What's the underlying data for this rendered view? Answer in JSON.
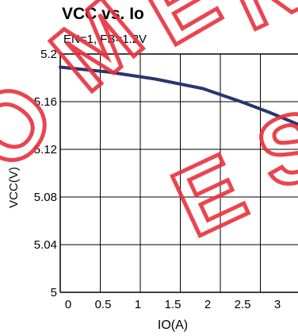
{
  "chart_data": {
    "type": "line",
    "title": "VCC vs. Io",
    "subtitle": "EN=1, FB=1.2V",
    "xlabel": "IO(A)",
    "ylabel": "VCC(V)",
    "xlim": [
      0,
      3
    ],
    "ylim": [
      5,
      5.2
    ],
    "x_ticks": [
      "0",
      "0.5",
      "1",
      "1.5",
      "2",
      "2.5",
      "3"
    ],
    "y_ticks": [
      "5",
      "5.04",
      "5.08",
      "5.12",
      "5.16",
      "5.2"
    ],
    "grid": true,
    "series": [
      {
        "color": "#2a3470",
        "x": [
          0,
          0.5,
          1,
          1.5,
          1.9,
          2.2,
          2.5,
          2.8,
          3.0
        ],
        "y": [
          5.189,
          5.185,
          5.179,
          5.171,
          5.16,
          5.151,
          5.141,
          5.131,
          5.124
        ]
      }
    ]
  },
  "watermark": {
    "text": "NOT RECOMMENDED FOR NEW DESIGNS",
    "color": "#e8313d"
  }
}
